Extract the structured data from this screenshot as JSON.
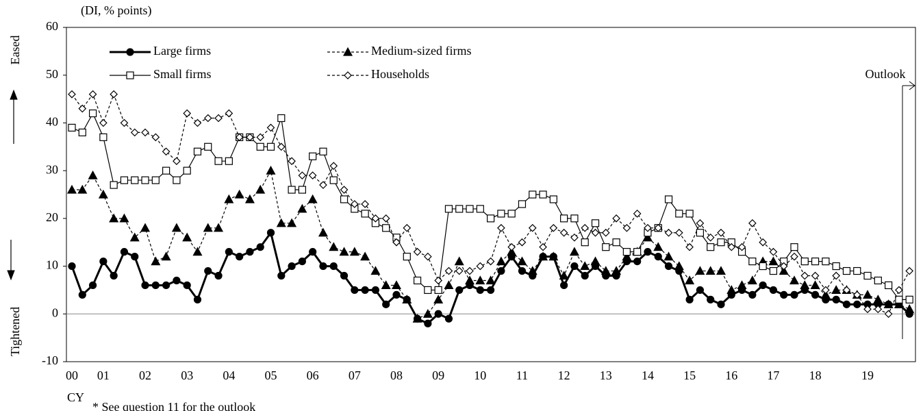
{
  "chart_data": {
    "type": "line",
    "unit_label": "(DI, % points)",
    "eased_label": "Eased",
    "tightened_label": "Tightened",
    "outlook_label": "Outlook",
    "x_axis_label": "CY",
    "footnote": "* See question 11 for the outlook",
    "ylim": [
      -10,
      60
    ],
    "yticks": [
      -10,
      0,
      10,
      20,
      30,
      40,
      50,
      60
    ],
    "categories": [
      "00",
      null,
      null,
      "01",
      null,
      null,
      null,
      "02",
      null,
      null,
      null,
      "03",
      null,
      null,
      null,
      "04",
      null,
      null,
      null,
      "05",
      null,
      null,
      null,
      "06",
      null,
      null,
      null,
      "07",
      null,
      null,
      null,
      "08",
      null,
      null,
      null,
      "09",
      null,
      null,
      null,
      "10",
      null,
      null,
      null,
      "11",
      null,
      null,
      null,
      "12",
      null,
      null,
      null,
      "13",
      null,
      null,
      null,
      "14",
      null,
      null,
      null,
      "15",
      null,
      null,
      null,
      "16",
      null,
      null,
      null,
      "17",
      null,
      null,
      null,
      "18",
      null,
      null,
      null,
      null,
      "19",
      null,
      null,
      null,
      null
    ],
    "series": [
      {
        "name": "Large firms",
        "color": "#000000",
        "dashed": false,
        "marker": "circle",
        "marker_fill": "#000000",
        "values": [
          10,
          4,
          6,
          11,
          8,
          13,
          12,
          6,
          6,
          6,
          7,
          6,
          3,
          9,
          8,
          13,
          12,
          13,
          14,
          17,
          8,
          10,
          11,
          13,
          10,
          10,
          8,
          5,
          5,
          5,
          2,
          4,
          3,
          -1,
          -2,
          0,
          -1,
          5,
          6,
          5,
          5,
          9,
          12,
          9,
          8,
          12,
          12,
          6,
          10,
          8,
          10,
          8,
          8,
          11,
          11,
          13,
          12,
          10,
          9,
          3,
          5,
          3,
          2,
          4,
          5,
          4,
          6,
          5,
          4,
          4,
          5,
          4,
          3,
          3,
          2,
          2,
          2,
          2,
          2,
          2,
          0
        ]
      },
      {
        "name": "Medium-sized firms",
        "color": "#000000",
        "dashed": true,
        "marker": "triangle",
        "marker_fill": "#000000",
        "values": [
          26,
          26,
          29,
          25,
          20,
          20,
          16,
          18,
          11,
          12,
          18,
          16,
          13,
          18,
          18,
          24,
          25,
          24,
          26,
          30,
          19,
          19,
          22,
          24,
          17,
          14,
          13,
          13,
          12,
          9,
          6,
          6,
          3,
          -1,
          0,
          3,
          6,
          11,
          7,
          7,
          7,
          11,
          13,
          11,
          9,
          12,
          12,
          8,
          13,
          10,
          11,
          9,
          9,
          12,
          13,
          16,
          14,
          12,
          10,
          7,
          9,
          9,
          9,
          5,
          6,
          7,
          11,
          11,
          9,
          7,
          6,
          6,
          4,
          5,
          5,
          4,
          4,
          3,
          2,
          2,
          1
        ]
      },
      {
        "name": "Small firms",
        "color": "#000000",
        "dashed": false,
        "marker": "square",
        "marker_fill": "#ffffff",
        "values": [
          39,
          38,
          42,
          37,
          27,
          28,
          28,
          28,
          28,
          30,
          28,
          30,
          34,
          35,
          32,
          32,
          37,
          37,
          35,
          35,
          41,
          26,
          26,
          33,
          34,
          28,
          24,
          22,
          21,
          19,
          18,
          16,
          12,
          7,
          5,
          5,
          22,
          22,
          22,
          22,
          20,
          21,
          21,
          23,
          25,
          25,
          24,
          20,
          20,
          15,
          19,
          14,
          15,
          13,
          13,
          17,
          18,
          24,
          21,
          21,
          17,
          14,
          15,
          15,
          13,
          11,
          10,
          9,
          11,
          14,
          11,
          11,
          11,
          10,
          9,
          9,
          8,
          7,
          6,
          3,
          3
        ]
      },
      {
        "name": "Households",
        "color": "#000000",
        "dashed": true,
        "marker": "diamond",
        "marker_fill": "#ffffff",
        "values": [
          46,
          43,
          46,
          40,
          46,
          40,
          38,
          38,
          37,
          34,
          32,
          42,
          40,
          41,
          41,
          42,
          37,
          37,
          37,
          39,
          35,
          32,
          29,
          29,
          27,
          31,
          26,
          23,
          23,
          20,
          20,
          15,
          18,
          13,
          12,
          7,
          9,
          9,
          9,
          10,
          11,
          18,
          14,
          15,
          18,
          14,
          18,
          17,
          16,
          18,
          17,
          17,
          20,
          18,
          21,
          18,
          18,
          17,
          17,
          14,
          19,
          16,
          17,
          14,
          14,
          19,
          15,
          13,
          10,
          12,
          8,
          8,
          5,
          8,
          5,
          4,
          1,
          1,
          0,
          5,
          9
        ]
      }
    ]
  }
}
